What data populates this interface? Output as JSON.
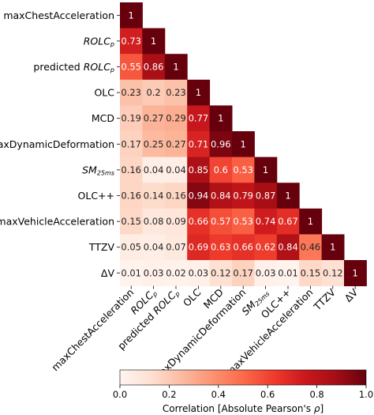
{
  "chart_data": {
    "type": "heatmap",
    "variables": [
      {
        "base": "maxChestAcceleration",
        "sub": "",
        "italic": false
      },
      {
        "base": "ROLC",
        "sub": "p",
        "italic": true
      },
      {
        "prefix": "predicted ",
        "base": "ROLC",
        "sub": "p",
        "italic": true
      },
      {
        "base": "OLC",
        "sub": "",
        "italic": false
      },
      {
        "base": "MCD",
        "sub": "",
        "italic": false
      },
      {
        "base": "maxDynamicDeformation",
        "sub": "",
        "italic": false
      },
      {
        "base": "SM",
        "sub": "25ms",
        "italic": true
      },
      {
        "base": "OLC++",
        "sub": "",
        "italic": false
      },
      {
        "base": "maxVehicleAcceleration",
        "sub": "",
        "italic": false
      },
      {
        "base": "TTZV",
        "sub": "",
        "italic": false
      },
      {
        "base": "ΔV",
        "sub": "",
        "italic": false
      }
    ],
    "matrix": [
      [
        1
      ],
      [
        0.73,
        1
      ],
      [
        0.55,
        0.86,
        1
      ],
      [
        0.23,
        0.2,
        0.23,
        1
      ],
      [
        0.19,
        0.27,
        0.29,
        0.77,
        1
      ],
      [
        0.17,
        0.25,
        0.27,
        0.71,
        0.96,
        1
      ],
      [
        0.16,
        0.04,
        0.04,
        0.85,
        0.6,
        0.53,
        1
      ],
      [
        0.16,
        0.14,
        0.16,
        0.94,
        0.84,
        0.79,
        0.87,
        1
      ],
      [
        0.15,
        0.08,
        0.09,
        0.66,
        0.57,
        0.53,
        0.74,
        0.67,
        1
      ],
      [
        0.05,
        0.04,
        0.07,
        0.69,
        0.63,
        0.66,
        0.62,
        0.84,
        0.46,
        1
      ],
      [
        0.01,
        0.03,
        0.02,
        0.03,
        0.12,
        0.17,
        0.03,
        0.01,
        0.15,
        0.12,
        1
      ]
    ],
    "colorbar": {
      "label_prefix": "Correlation [Absolute Pearson's ",
      "label_symbol": "ρ",
      "label_suffix": "]",
      "range": [
        0.0,
        1.0
      ],
      "ticks": [
        "0.0",
        "0.2",
        "0.4",
        "0.6",
        "0.8",
        "1.0"
      ],
      "colormap": "Reds"
    }
  }
}
